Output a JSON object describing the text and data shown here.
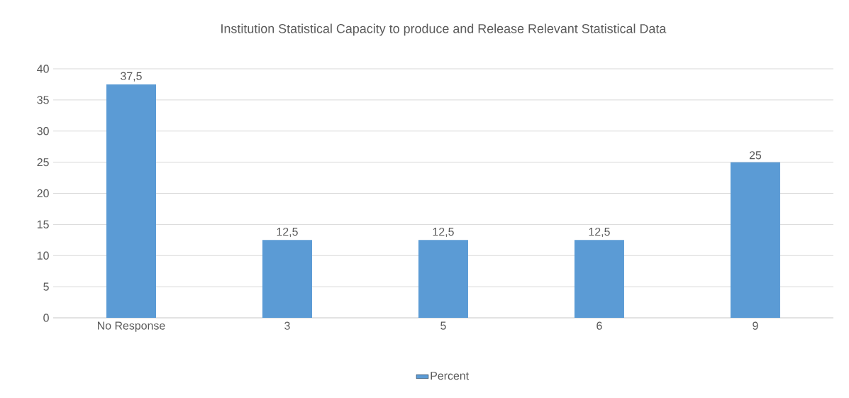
{
  "chart_data": {
    "type": "bar",
    "title": "Institution Statistical Capacity to produce and Release Relevant Statistical Data",
    "categories": [
      "No Response",
      "3",
      "5",
      "6",
      "9"
    ],
    "series": [
      {
        "name": "Percent",
        "color": "#5b9bd5",
        "values": [
          37.5,
          12.5,
          12.5,
          12.5,
          25
        ],
        "value_labels": [
          "37,5",
          "12,5",
          "12,5",
          "12,5",
          "25"
        ]
      }
    ],
    "ylim": [
      0,
      40
    ],
    "yticks": [
      0,
      5,
      10,
      15,
      20,
      25,
      30,
      35,
      40
    ],
    "grid": "y",
    "legend": "bottom"
  }
}
